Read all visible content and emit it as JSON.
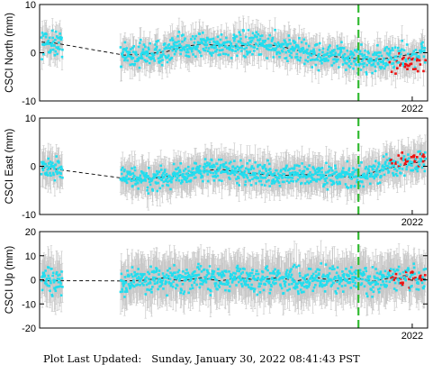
{
  "footer": {
    "label": "Plot Last Updated:",
    "timestamp": "Sunday, January 30, 2022 08:41:43 PST"
  },
  "colors": {
    "data_points": "#22ddee",
    "recent_points": "#ee1111",
    "error_bars": "#c8c8c8",
    "model_line": "#000000",
    "event_marker": "#33bb33"
  },
  "chart_data": [
    {
      "type": "scatter",
      "ylabel": "CSCI North (mm)",
      "ylim": [
        -10,
        10
      ],
      "yticks": [
        10,
        0,
        -10
      ],
      "x_tick_label": "2022",
      "x_range_years": [
        2012.3,
        2022.4
      ],
      "event_marker_year": 2020.6,
      "gaps": [
        [
          2012.9,
          2014.4
        ]
      ],
      "model": {
        "x": [
          2012.35,
          2012.7,
          2014.5,
          2015.0,
          2015.6,
          2016.0,
          2016.5,
          2017.0,
          2017.5,
          2018.0,
          2018.5,
          2019.0,
          2019.5,
          2020.0,
          2020.5,
          2021.0,
          2021.5,
          2022.0,
          2022.35
        ],
        "y": [
          2.2,
          2.0,
          -0.5,
          -0.3,
          0.2,
          1.2,
          1.8,
          1.5,
          1.4,
          1.7,
          1.5,
          0.5,
          -0.5,
          -0.8,
          -1.2,
          -1.5,
          -1.0,
          -0.2,
          0.3
        ]
      },
      "recent_range_years": [
        2021.4,
        2022.35
      ],
      "recent_y_mean": -2.5,
      "scatter_amplitude": 2.2,
      "error_bar": 2.5
    },
    {
      "type": "scatter",
      "ylabel": "CSCI East (mm)",
      "ylim": [
        -10,
        10
      ],
      "yticks": [
        10,
        0,
        -10
      ],
      "x_tick_label": "2022",
      "x_range_years": [
        2012.3,
        2022.4
      ],
      "event_marker_year": 2020.6,
      "gaps": [
        [
          2012.9,
          2014.4
        ]
      ],
      "model": {
        "x": [
          2012.35,
          2012.7,
          2014.5,
          2015.0,
          2015.5,
          2016.0,
          2016.5,
          2017.0,
          2017.5,
          2018.0,
          2018.5,
          2019.0,
          2019.5,
          2020.0,
          2020.5,
          2021.0,
          2021.5,
          2022.0,
          2022.35
        ],
        "y": [
          -0.3,
          -0.6,
          -2.5,
          -2.8,
          -2.2,
          -1.8,
          -1.0,
          -0.6,
          -1.2,
          -1.6,
          -2.0,
          -1.7,
          -1.8,
          -2.0,
          -2.3,
          -1.2,
          -0.2,
          0.6,
          1.2
        ]
      },
      "recent_range_years": [
        2021.4,
        2022.35
      ],
      "recent_y_mean": 1.5,
      "scatter_amplitude": 2.0,
      "error_bar": 3.0
    },
    {
      "type": "scatter",
      "ylabel": "CSCI Up (mm)",
      "ylim": [
        -20,
        20
      ],
      "yticks": [
        20,
        10,
        0,
        -10,
        -20
      ],
      "x_tick_label": "2022",
      "x_range_years": [
        2012.3,
        2022.4
      ],
      "event_marker_year": 2020.6,
      "gaps": [
        [
          2012.9,
          2014.4
        ]
      ],
      "model": {
        "x": [
          2012.35,
          2012.7,
          2014.5,
          2015.0,
          2015.5,
          2016.0,
          2016.5,
          2017.0,
          2017.5,
          2018.0,
          2018.5,
          2019.0,
          2019.5,
          2020.0,
          2020.5,
          2021.0,
          2021.5,
          2022.0,
          2022.35
        ],
        "y": [
          -0.5,
          -0.3,
          -0.5,
          -0.2,
          0.8,
          -0.4,
          0.9,
          -0.5,
          1.0,
          -0.3,
          1.0,
          -0.4,
          1.0,
          -0.5,
          0.8,
          -0.5,
          1.0,
          -0.2,
          0.5
        ]
      },
      "recent_range_years": [
        2021.4,
        2022.35
      ],
      "recent_y_mean": 0.5,
      "scatter_amplitude": 4.5,
      "error_bar": 8.0
    }
  ]
}
